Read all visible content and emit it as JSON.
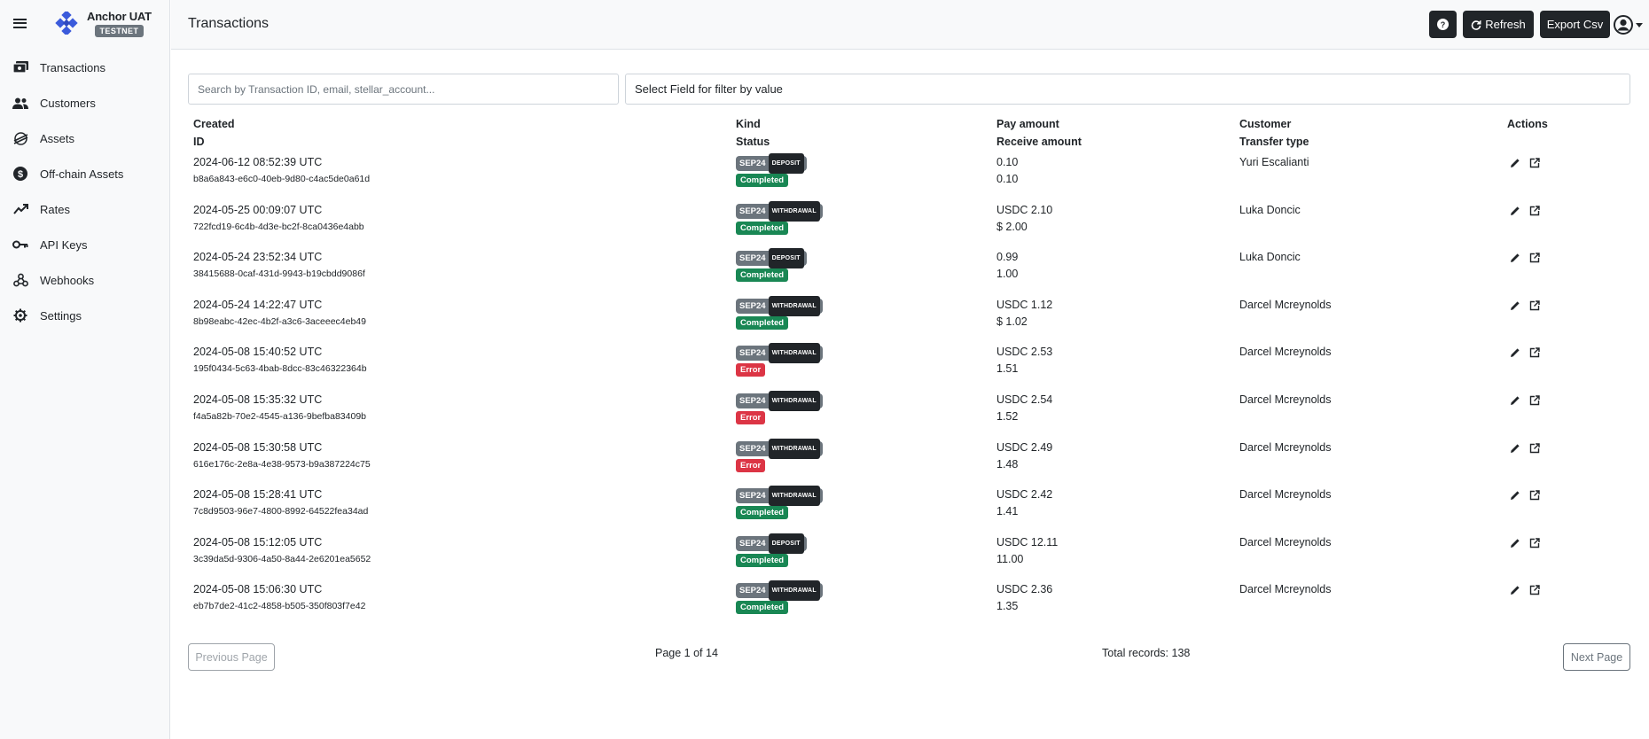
{
  "app": {
    "name": "Anchor UAT",
    "env_badge": "TESTNET"
  },
  "sidebar": {
    "items": [
      {
        "label": "Transactions",
        "icon": "money-bills-icon"
      },
      {
        "label": "Customers",
        "icon": "users-icon"
      },
      {
        "label": "Assets",
        "icon": "stellar-icon"
      },
      {
        "label": "Off-chain Assets",
        "icon": "dollar-circle-icon"
      },
      {
        "label": "Rates",
        "icon": "trend-up-icon"
      },
      {
        "label": "API Keys",
        "icon": "key-icon"
      },
      {
        "label": "Webhooks",
        "icon": "webhook-icon"
      },
      {
        "label": "Settings",
        "icon": "gear-icon"
      }
    ]
  },
  "header": {
    "title": "Transactions",
    "help_label": "?",
    "refresh_label": "Refresh",
    "export_label": "Export Csv"
  },
  "filters": {
    "search_placeholder": "Search by Transaction ID, email, stellar_account...",
    "field_select_label": "Select Field for filter by value"
  },
  "table": {
    "headers": {
      "created": "Created",
      "id": "ID",
      "kind": "Kind",
      "status": "Status",
      "pay_amount": "Pay amount",
      "receive_amount": "Receive amount",
      "customer": "Customer",
      "transfer_type": "Transfer type",
      "actions": "Actions"
    },
    "rows": [
      {
        "created": "2024-06-12 08:52:39 UTC",
        "id": "b8a6a843-e6c0-40eb-9d80-c4ac5de0a61d",
        "kind": "SEP24",
        "kind_sub": "DEPOSIT",
        "status": "Completed",
        "pay": "0.10",
        "receive": "0.10",
        "customer": "Yuri Escalianti",
        "transfer_type": ""
      },
      {
        "created": "2024-05-25 00:09:07 UTC",
        "id": "722fcd19-6c4b-4d3e-bc2f-8ca0436e4abb",
        "kind": "SEP24",
        "kind_sub": "WITHDRAWAL",
        "status": "Completed",
        "pay": "USDC 2.10",
        "receive": "$ 2.00",
        "customer": "Luka Doncic",
        "transfer_type": ""
      },
      {
        "created": "2024-05-24 23:52:34 UTC",
        "id": "38415688-0caf-431d-9943-b19cbdd9086f",
        "kind": "SEP24",
        "kind_sub": "DEPOSIT",
        "status": "Completed",
        "pay": "0.99",
        "receive": "1.00",
        "customer": "Luka Doncic",
        "transfer_type": ""
      },
      {
        "created": "2024-05-24 14:22:47 UTC",
        "id": "8b98eabc-42ec-4b2f-a3c6-3aceeec4eb49",
        "kind": "SEP24",
        "kind_sub": "WITHDRAWAL",
        "status": "Completed",
        "pay": "USDC 1.12",
        "receive": "$ 1.02",
        "customer": "Darcel Mcreynolds",
        "transfer_type": ""
      },
      {
        "created": "2024-05-08 15:40:52 UTC",
        "id": "195f0434-5c63-4bab-8dcc-83c46322364b",
        "kind": "SEP24",
        "kind_sub": "WITHDRAWAL",
        "status": "Error",
        "pay": "USDC 2.53",
        "receive": "1.51",
        "customer": "Darcel Mcreynolds",
        "transfer_type": ""
      },
      {
        "created": "2024-05-08 15:35:32 UTC",
        "id": "f4a5a82b-70e2-4545-a136-9befba83409b",
        "kind": "SEP24",
        "kind_sub": "WITHDRAWAL",
        "status": "Error",
        "pay": "USDC 2.54",
        "receive": "1.52",
        "customer": "Darcel Mcreynolds",
        "transfer_type": ""
      },
      {
        "created": "2024-05-08 15:30:58 UTC",
        "id": "616e176c-2e8a-4e38-9573-b9a387224c75",
        "kind": "SEP24",
        "kind_sub": "WITHDRAWAL",
        "status": "Error",
        "pay": "USDC 2.49",
        "receive": "1.48",
        "customer": "Darcel Mcreynolds",
        "transfer_type": ""
      },
      {
        "created": "2024-05-08 15:28:41 UTC",
        "id": "7c8d9503-96e7-4800-8992-64522fea34ad",
        "kind": "SEP24",
        "kind_sub": "WITHDRAWAL",
        "status": "Completed",
        "pay": "USDC 2.42",
        "receive": "1.41",
        "customer": "Darcel Mcreynolds",
        "transfer_type": ""
      },
      {
        "created": "2024-05-08 15:12:05 UTC",
        "id": "3c39da5d-9306-4a50-8a44-2e6201ea5652",
        "kind": "SEP24",
        "kind_sub": "DEPOSIT",
        "status": "Completed",
        "pay": "USDC 12.11",
        "receive": "11.00",
        "customer": "Darcel Mcreynolds",
        "transfer_type": ""
      },
      {
        "created": "2024-05-08 15:06:30 UTC",
        "id": "eb7b7de2-41c2-4858-b505-350f803f7e42",
        "kind": "SEP24",
        "kind_sub": "WITHDRAWAL",
        "status": "Completed",
        "pay": "USDC 2.36",
        "receive": "1.35",
        "customer": "Darcel Mcreynolds",
        "transfer_type": ""
      }
    ]
  },
  "pagination": {
    "prev_label": "Previous Page",
    "next_label": "Next Page",
    "page_info": "Page 1 of 14",
    "total_info": "Total records: 138"
  },
  "colors": {
    "completed": "#198754",
    "error": "#dc3545",
    "badge_gray": "#6c757d",
    "dark": "#212529",
    "logo_blue": "#3b5bdb"
  }
}
